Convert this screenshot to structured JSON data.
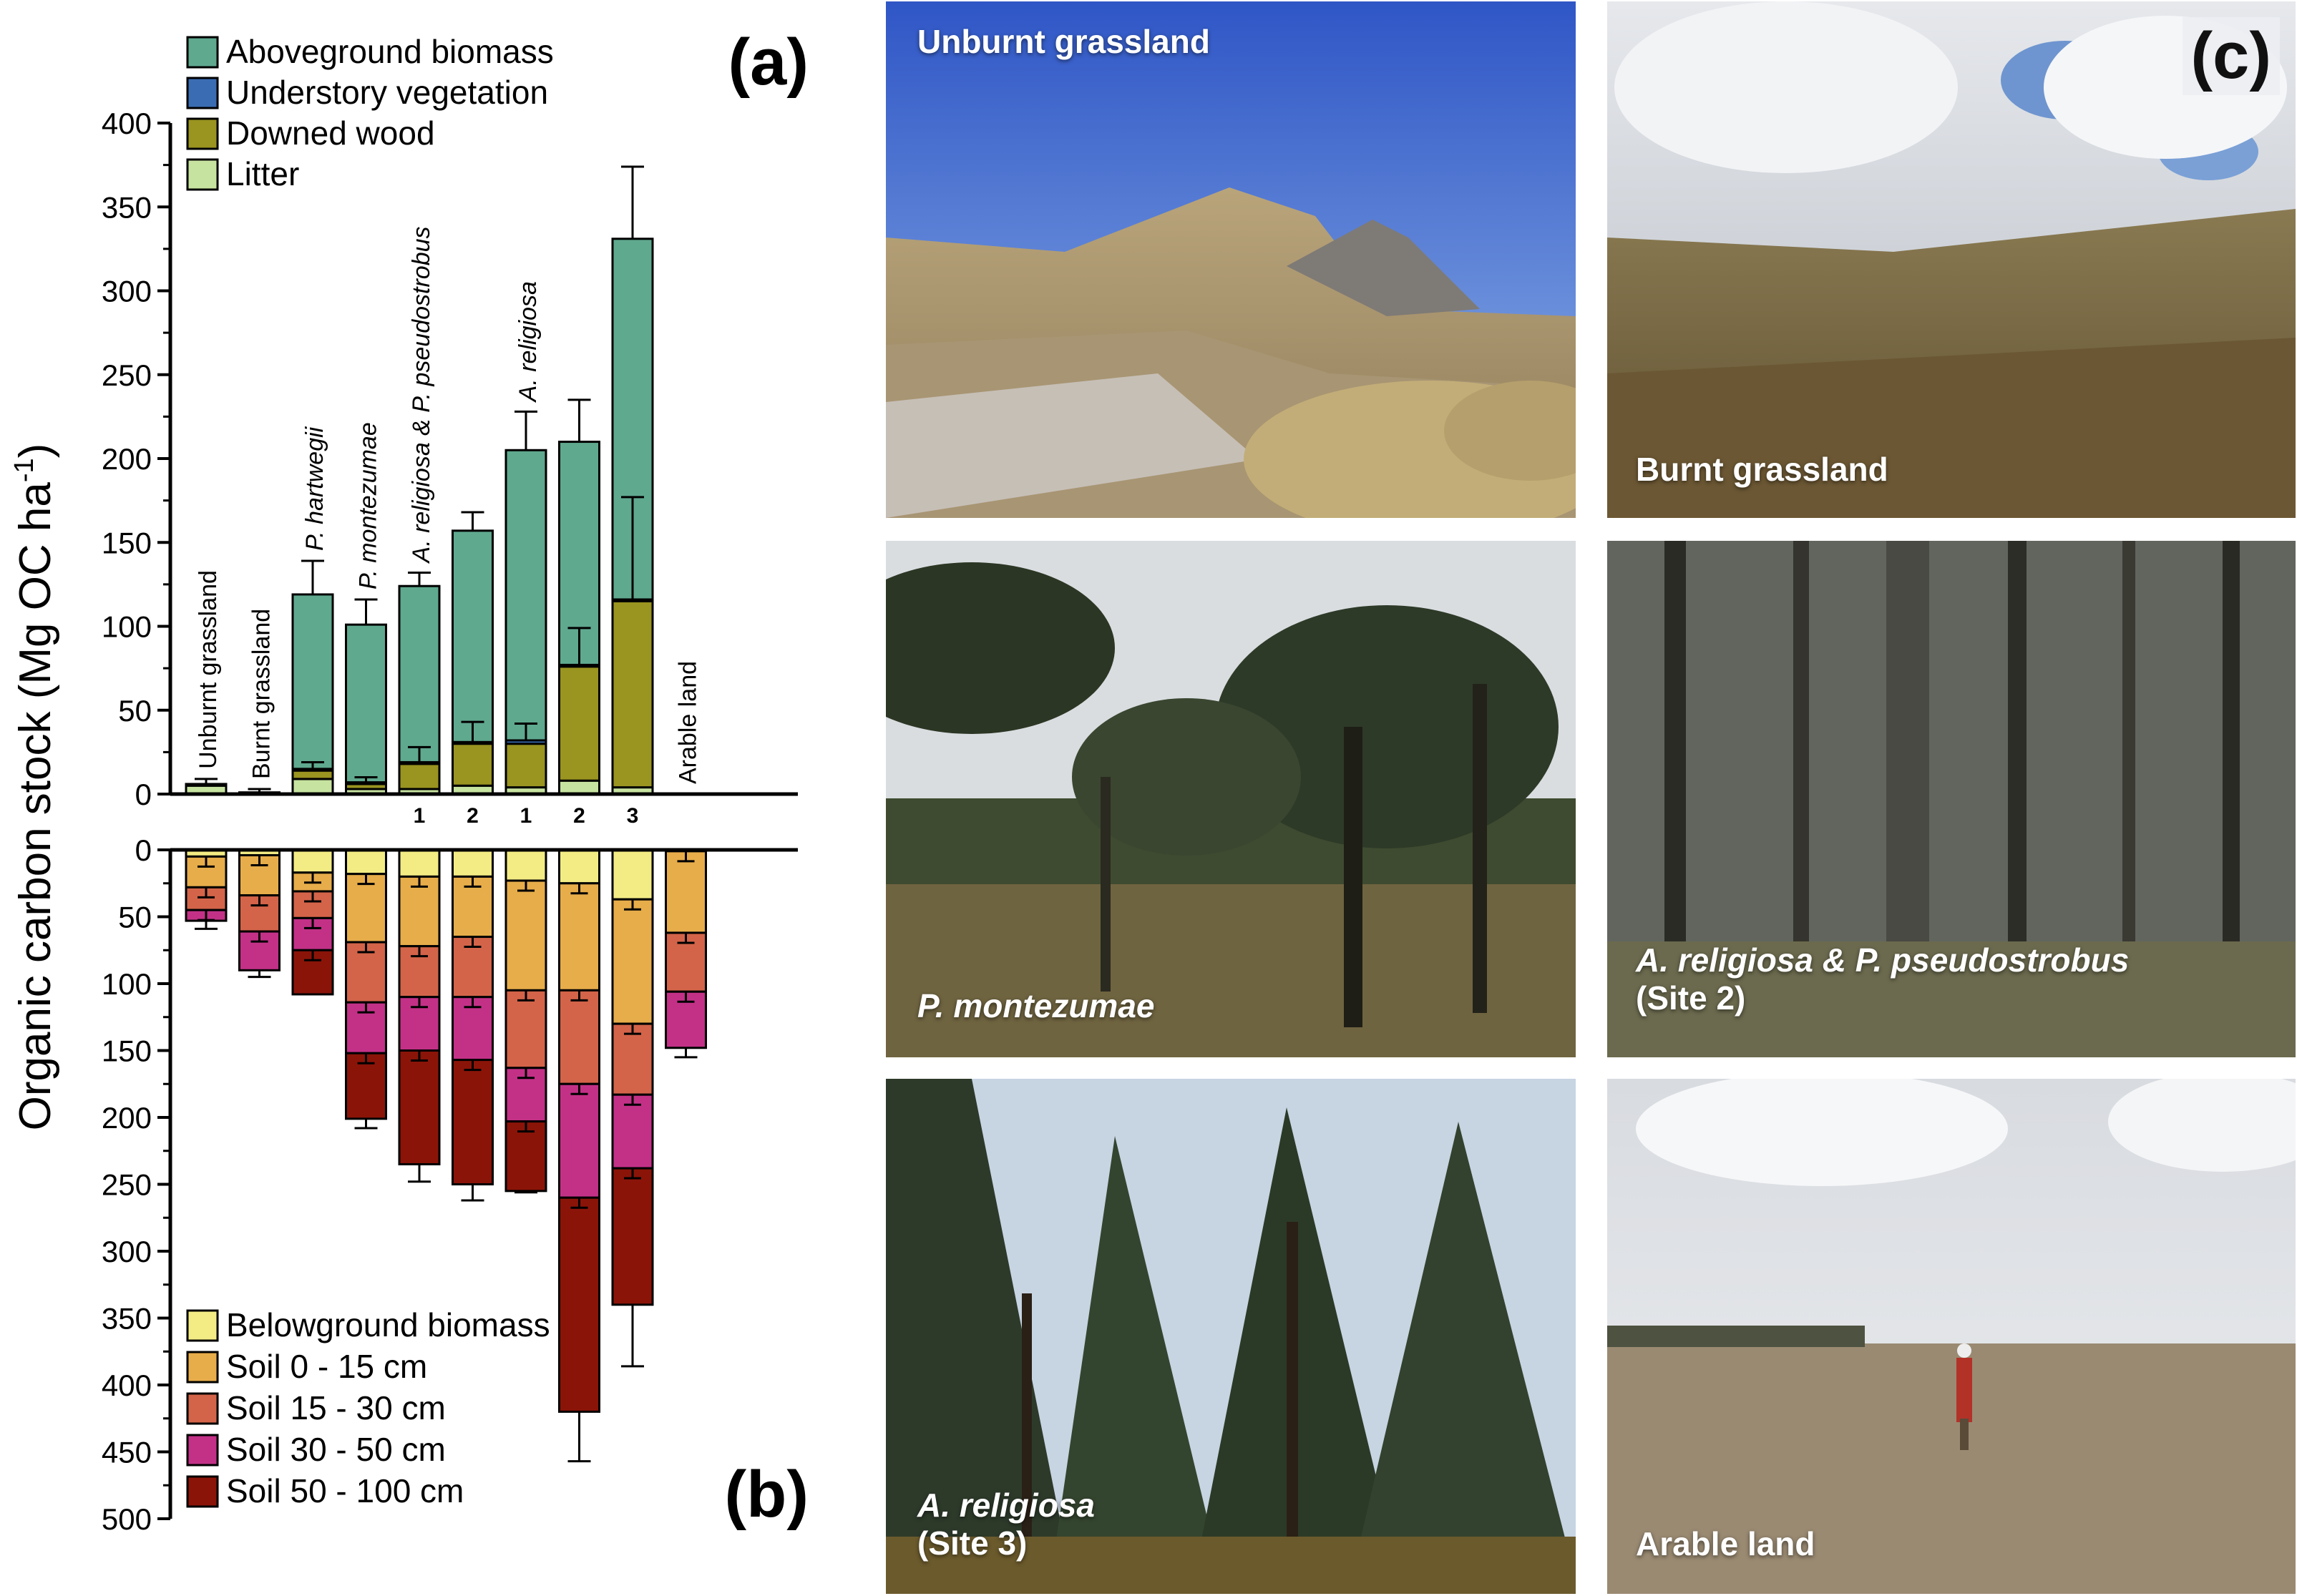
{
  "panel_labels": {
    "a": "(a)",
    "b": "(b)",
    "c": "(c)"
  },
  "colors": {
    "aboveground_biomass": "#5fa98f",
    "understory_vegetation": "#3a6cb3",
    "downed_wood": "#9a9420",
    "litter": "#c7e3a0",
    "belowground_biomass": "#f3ec84",
    "soil_0_15": "#e7ad4a",
    "soil_15_30": "#d36449",
    "soil_30_50": "#c33187",
    "soil_50_100": "#8b1409"
  },
  "chart_data": {
    "type": "bar",
    "subtype": "stacked, mirrored (aboveground positive / belowground plotted downward)",
    "ylabel": "Organic carbon stock (Mg OC ha",
    "ylabel_sup": "-1",
    "ylabel_close": ")",
    "upper_ylim": [
      0,
      400
    ],
    "upper_ticks": [
      "0",
      "50",
      "100",
      "150",
      "200",
      "250",
      "300",
      "350",
      "400"
    ],
    "lower_ylim": [
      0,
      500
    ],
    "lower_ticks": [
      "0",
      "50",
      "100",
      "150",
      "200",
      "250",
      "300",
      "350",
      "400",
      "450",
      "500"
    ],
    "categories": [
      {
        "label": "Unburnt grassland",
        "italic": false,
        "site": ""
      },
      {
        "label": "Burnt grassland",
        "italic": false,
        "site": ""
      },
      {
        "label": "P. hartwegii",
        "italic": true,
        "site": ""
      },
      {
        "label": "P. montezumae",
        "italic": true,
        "site": ""
      },
      {
        "label": "A. religiosa & P. pseudostrobus",
        "italic": true,
        "site": "1"
      },
      {
        "label": "",
        "italic": true,
        "site": "2"
      },
      {
        "label": "A. religiosa",
        "italic": true,
        "site": "1"
      },
      {
        "label": "",
        "italic": true,
        "site": "2"
      },
      {
        "label": "",
        "italic": true,
        "site": "3"
      },
      {
        "label": "Arable land",
        "italic": false,
        "site": ""
      }
    ],
    "aboveground_legend": [
      "Aboveground biomass",
      "Understory vegetation",
      "Downed wood",
      "Litter"
    ],
    "aboveground_series": [
      {
        "name": "Litter",
        "color_key": "litter",
        "values": [
          5,
          1,
          9,
          3,
          3,
          5,
          4,
          8,
          4,
          0
        ]
      },
      {
        "name": "Downed wood",
        "color_key": "downed_wood",
        "values": [
          0,
          0,
          5,
          3,
          15,
          25,
          26,
          68,
          111,
          0
        ]
      },
      {
        "name": "Understory vegetation",
        "color_key": "understory_vegetation",
        "values": [
          1,
          0,
          1,
          1,
          1,
          1,
          2,
          1,
          1,
          0
        ]
      },
      {
        "name": "Aboveground biomass",
        "color_key": "aboveground_biomass",
        "values": [
          0,
          0,
          104,
          94,
          105,
          126,
          173,
          133,
          215,
          0
        ]
      }
    ],
    "aboveground_error_tops": [
      9,
      3,
      139,
      116,
      132,
      168,
      228,
      235,
      374,
      null
    ],
    "aboveground_inner_errors": [
      null,
      null,
      19,
      10,
      28,
      43,
      42,
      99,
      177,
      null
    ],
    "belowground_legend": [
      "Belowground biomass",
      "Soil 0 - 15 cm",
      "Soil 15 - 30 cm",
      "Soil 30 - 50 cm",
      "Soil 50 - 100 cm"
    ],
    "belowground_series": [
      {
        "name": "Belowground biomass",
        "color_key": "belowground_biomass",
        "values": [
          5,
          4,
          17,
          18,
          20,
          20,
          23,
          25,
          37,
          1
        ]
      },
      {
        "name": "Soil 0 - 15 cm",
        "color_key": "soil_0_15",
        "values": [
          23,
          30,
          14,
          51,
          52,
          45,
          82,
          80,
          93,
          61
        ]
      },
      {
        "name": "Soil 15 - 30 cm",
        "color_key": "soil_15_30",
        "values": [
          17,
          27,
          20,
          45,
          38,
          45,
          58,
          70,
          53,
          44
        ]
      },
      {
        "name": "Soil 30 - 50 cm",
        "color_key": "soil_30_50",
        "values": [
          8,
          29,
          24,
          38,
          40,
          47,
          40,
          85,
          55,
          42
        ]
      },
      {
        "name": "Soil 50 - 100 cm",
        "color_key": "soil_50_100",
        "values": [
          0,
          0,
          33,
          49,
          85,
          93,
          52,
          160,
          102,
          0
        ]
      }
    ],
    "belowground_error_tops": [
      59,
      95,
      107,
      208,
      248,
      262,
      256,
      457,
      386,
      155
    ]
  },
  "photos": [
    {
      "id": "unburnt",
      "label": "Unburnt grassland",
      "site": ""
    },
    {
      "id": "burnt",
      "label": "Burnt grassland",
      "site": ""
    },
    {
      "id": "montezumae",
      "label": "P. montezumae",
      "site": ""
    },
    {
      "id": "religiosa-pseudo",
      "label": "A. religiosa & P. pseudostrobus",
      "site": "(Site 2)"
    },
    {
      "id": "religiosa",
      "label": "A. religiosa",
      "site": "(Site 3)"
    },
    {
      "id": "arable",
      "label": "Arable land",
      "site": ""
    }
  ]
}
